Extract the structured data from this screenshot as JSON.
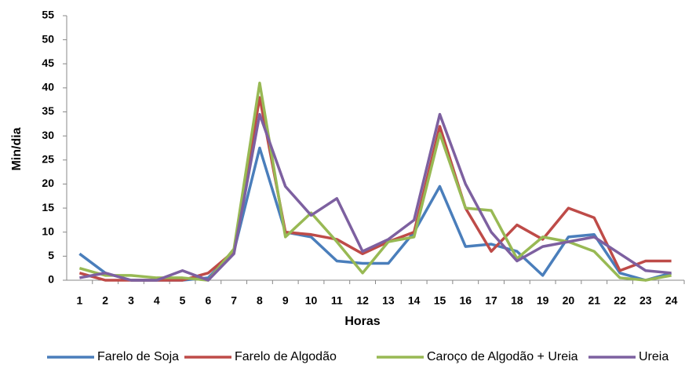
{
  "chart_data": {
    "type": "line",
    "x_label": "Horas",
    "y_label": "Min/dia",
    "categories": [
      "1",
      "2",
      "3",
      "4",
      "5",
      "6",
      "7",
      "8",
      "9",
      "10",
      "11",
      "12",
      "13",
      "14",
      "15",
      "16",
      "17",
      "18",
      "19",
      "20",
      "21",
      "22",
      "23",
      "24"
    ],
    "series": [
      {
        "name": "Farelo de Soja",
        "color": "#4a7ebb",
        "values": [
          5.5,
          1.5,
          0,
          0,
          0,
          0.5,
          6,
          27.5,
          10,
          9,
          4,
          3.5,
          3.5,
          10,
          19.5,
          7,
          7.5,
          6,
          1,
          9,
          9.5,
          1.5,
          0,
          1.5
        ]
      },
      {
        "name": "Farelo de Algodão",
        "color": "#be4b48",
        "values": [
          1.5,
          0,
          0,
          0,
          0,
          1.5,
          6,
          38,
          10,
          9.5,
          8.5,
          5.5,
          8,
          10,
          32,
          15,
          6,
          11.5,
          8.5,
          15,
          13,
          2,
          4,
          4
        ]
      },
      {
        "name": "Caroço de Algodão + Ureia",
        "color": "#98b954",
        "values": [
          2.5,
          1,
          1,
          0.5,
          0.5,
          0,
          6.5,
          41,
          9,
          14,
          8,
          1.5,
          8,
          9,
          30.5,
          15,
          14.5,
          4.5,
          9,
          8,
          6,
          0.5,
          0,
          1
        ]
      },
      {
        "name": "Ureia",
        "color": "#7d60a0",
        "values": [
          0.5,
          1.5,
          0,
          0,
          2,
          0,
          5.5,
          34.5,
          19.5,
          13.5,
          17,
          6,
          8.5,
          12.5,
          34.5,
          20,
          10,
          4,
          7,
          8,
          9,
          5.5,
          2,
          1.5
        ]
      }
    ],
    "ylim": [
      0,
      55
    ],
    "yticks": [
      0,
      5,
      10,
      15,
      20,
      25,
      30,
      35,
      40,
      45,
      50,
      55
    ],
    "legend": "bottom"
  }
}
